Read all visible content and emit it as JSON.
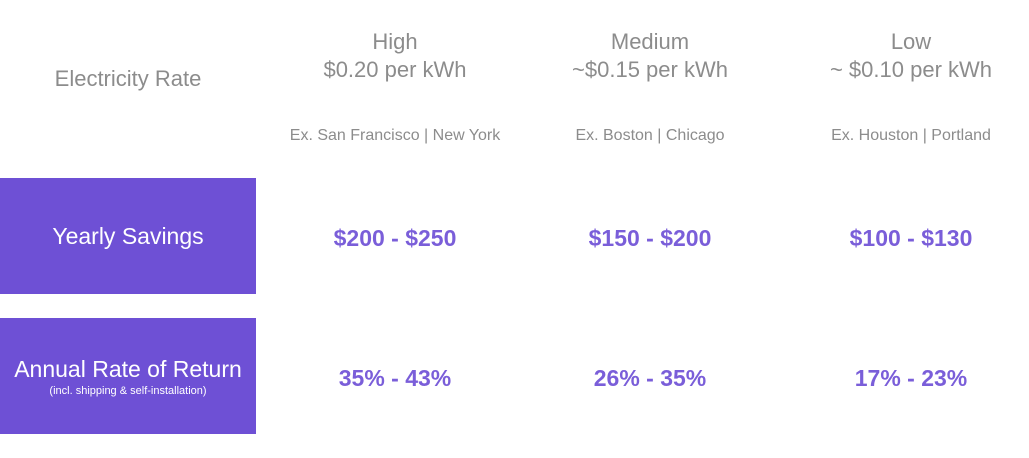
{
  "table": {
    "header": {
      "label": "Electricity Rate",
      "columns": [
        {
          "level": "High",
          "rate": "$0.20 per kWh",
          "examples": "Ex. San Francisco | New York"
        },
        {
          "level": "Medium",
          "rate": "~$0.15 per kWh",
          "examples": "Ex. Boston | Chicago"
        },
        {
          "level": "Low",
          "rate": "~ $0.10 per kWh",
          "examples": "Ex. Houston | Portland"
        }
      ]
    },
    "rows": [
      {
        "label": "Yearly Savings",
        "values": [
          "$200 - $250",
          "$150 - $200",
          "$100 - $130"
        ]
      },
      {
        "label": "Annual Rate of Return",
        "note": "(incl. shipping & self-installation)",
        "values": [
          "35% - 43%",
          "26% - 35%",
          "17% - 23%"
        ]
      }
    ]
  }
}
